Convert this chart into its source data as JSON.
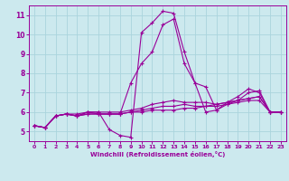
{
  "background_color": "#cce9ee",
  "grid_color": "#aad4dd",
  "line_color": "#990099",
  "xlabel": "Windchill (Refroidissement éolien,°C)",
  "xlim": [
    -0.5,
    23.5
  ],
  "ylim": [
    4.5,
    11.5
  ],
  "yticks": [
    5,
    6,
    7,
    8,
    9,
    10,
    11
  ],
  "xticks": [
    0,
    1,
    2,
    3,
    4,
    5,
    6,
    7,
    8,
    9,
    10,
    11,
    12,
    13,
    14,
    15,
    16,
    17,
    18,
    19,
    20,
    21,
    22,
    23
  ],
  "series": [
    {
      "x": [
        0,
        1,
        2,
        3,
        4,
        5,
        6,
        7,
        8,
        9,
        10,
        11,
        12,
        13,
        14,
        15,
        16,
        17,
        18,
        19,
        20,
        21,
        22,
        23
      ],
      "y": [
        5.3,
        5.2,
        5.8,
        5.9,
        5.8,
        6.0,
        6.0,
        5.1,
        4.8,
        4.7,
        10.1,
        10.6,
        11.2,
        11.1,
        9.1,
        7.5,
        7.3,
        6.1,
        6.4,
        6.6,
        7.0,
        7.1,
        6.0,
        6.0
      ]
    },
    {
      "x": [
        0,
        1,
        2,
        3,
        4,
        5,
        6,
        7,
        8,
        9,
        10,
        11,
        12,
        13,
        14,
        15,
        16,
        17,
        18,
        19,
        20,
        21,
        22,
        23
      ],
      "y": [
        5.3,
        5.2,
        5.8,
        5.9,
        5.9,
        6.0,
        5.9,
        5.9,
        5.9,
        7.5,
        8.5,
        9.1,
        10.5,
        10.8,
        8.5,
        7.5,
        6.0,
        6.1,
        6.5,
        6.8,
        7.2,
        7.0,
        6.0,
        6.0
      ]
    },
    {
      "x": [
        0,
        1,
        2,
        3,
        4,
        5,
        6,
        7,
        8,
        9,
        10,
        11,
        12,
        13,
        14,
        15,
        16,
        17,
        18,
        19,
        20,
        21,
        22,
        23
      ],
      "y": [
        5.3,
        5.2,
        5.8,
        5.9,
        5.8,
        5.9,
        5.9,
        5.9,
        5.9,
        6.0,
        6.0,
        6.1,
        6.1,
        6.1,
        6.2,
        6.2,
        6.3,
        6.4,
        6.5,
        6.6,
        6.7,
        6.8,
        6.0,
        6.0
      ]
    },
    {
      "x": [
        0,
        1,
        2,
        3,
        4,
        5,
        6,
        7,
        8,
        9,
        10,
        11,
        12,
        13,
        14,
        15,
        16,
        17,
        18,
        19,
        20,
        21,
        22,
        23
      ],
      "y": [
        5.3,
        5.2,
        5.8,
        5.9,
        5.8,
        5.9,
        5.9,
        5.9,
        5.9,
        6.0,
        6.1,
        6.2,
        6.3,
        6.3,
        6.4,
        6.3,
        6.3,
        6.3,
        6.4,
        6.5,
        6.6,
        6.6,
        6.0,
        6.0
      ]
    },
    {
      "x": [
        0,
        1,
        2,
        3,
        4,
        5,
        6,
        7,
        8,
        9,
        10,
        11,
        12,
        13,
        14,
        15,
        16,
        17,
        18,
        19,
        20,
        21,
        22,
        23
      ],
      "y": [
        5.3,
        5.2,
        5.8,
        5.9,
        5.8,
        6.0,
        6.0,
        6.0,
        6.0,
        6.1,
        6.2,
        6.4,
        6.5,
        6.6,
        6.5,
        6.5,
        6.5,
        6.4,
        6.5,
        6.6,
        6.7,
        6.8,
        6.0,
        6.0
      ]
    }
  ]
}
